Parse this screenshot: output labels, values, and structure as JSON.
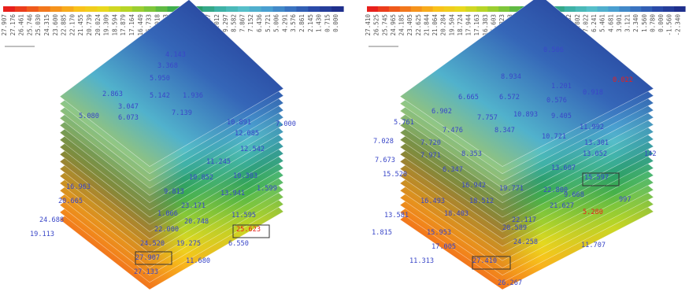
{
  "panels": [
    {
      "id": "left",
      "legend_values": [
        "27.907",
        "27.176",
        "26.461",
        "25.746",
        "25.030",
        "24.315",
        "23.600",
        "22.885",
        "22.170",
        "21.455",
        "20.739",
        "20.024",
        "19.309",
        "18.594",
        "17.879",
        "17.164",
        "16.449",
        "15.733",
        "15.018",
        "14.303",
        "13.587",
        "12.873",
        "12.158",
        "11.442",
        "10.727",
        "10.012",
        "9.297",
        "8.582",
        "7.867",
        "7.152",
        "6.436",
        "5.721",
        "5.006",
        "4.291",
        "3.576",
        "2.861",
        "2.145",
        "1.430",
        "0.715",
        "0.000"
      ],
      "max_box_label": "27.907",
      "labels": [
        {
          "t": "4.143",
          "c": "blue"
        },
        {
          "t": "3.368",
          "c": "blue"
        },
        {
          "t": "5.950",
          "c": "blue"
        },
        {
          "t": "2.863",
          "c": "blue"
        },
        {
          "t": "5.142",
          "c": "blue"
        },
        {
          "t": "1.936",
          "c": "blue"
        },
        {
          "t": "3.047",
          "c": "blue"
        },
        {
          "t": "7.139",
          "c": "blue"
        },
        {
          "t": "5.080",
          "c": "blue"
        },
        {
          "t": "6.073",
          "c": "blue"
        },
        {
          "t": "10.891",
          "c": "blue"
        },
        {
          "t": "7.000",
          "c": "blue"
        },
        {
          "t": "12.085",
          "c": "blue"
        },
        {
          "t": "12.542",
          "c": "blue"
        },
        {
          "t": "11.245",
          "c": "blue"
        },
        {
          "t": "10.852",
          "c": "blue"
        },
        {
          "t": "10.303",
          "c": "blue"
        },
        {
          "t": "9.813",
          "c": "blue"
        },
        {
          "t": "13.941",
          "c": "blue"
        },
        {
          "t": "1.599",
          "c": "blue"
        },
        {
          "t": "16.963",
          "c": "blue"
        },
        {
          "t": "20.665",
          "c": "blue"
        },
        {
          "t": "1.066",
          "c": "blue"
        },
        {
          "t": "23.171",
          "c": "blue"
        },
        {
          "t": "11.595",
          "c": "blue"
        },
        {
          "t": "20.748",
          "c": "blue"
        },
        {
          "t": "24.688",
          "c": "blue"
        },
        {
          "t": "22.000",
          "c": "blue"
        },
        {
          "t": "19.113",
          "c": "blue"
        },
        {
          "t": "24.520",
          "c": "blue"
        },
        {
          "t": "19.275",
          "c": "blue"
        },
        {
          "t": "6.550",
          "c": "blue"
        },
        {
          "t": "27.907",
          "c": "blue"
        },
        {
          "t": "11.680",
          "c": "blue"
        },
        {
          "t": "27.133",
          "c": "blue"
        },
        {
          "t": "25.623",
          "c": "red"
        }
      ]
    },
    {
      "id": "right",
      "legend_values": [
        "27.410",
        "26.525",
        "25.745",
        "24.965",
        "24.185",
        "23.405",
        "22.625",
        "21.844",
        "21.064",
        "20.284",
        "19.504",
        "18.724",
        "17.944",
        "17.163",
        "16.383",
        "15.603",
        "14.823",
        "14.043",
        "13.263",
        "12.483",
        "11.702",
        "10.922",
        "10.142",
        "9.362",
        "8.582",
        "7.802",
        "7.022",
        "6.241",
        "5.461",
        "4.681",
        "3.901",
        "3.121",
        "2.340",
        "1.560",
        "0.780",
        "0.000",
        "-1.560",
        "-2.340"
      ],
      "max_box_label": "27.410",
      "labels": [
        {
          "t": "0.506",
          "c": "blue"
        },
        {
          "t": "8.934",
          "c": "blue"
        },
        {
          "t": "1.201",
          "c": "blue"
        },
        {
          "t": "0.022",
          "c": "red"
        },
        {
          "t": "6.665",
          "c": "blue"
        },
        {
          "t": "6.572",
          "c": "blue"
        },
        {
          "t": "0.576",
          "c": "blue"
        },
        {
          "t": "0.918",
          "c": "blue"
        },
        {
          "t": "6.902",
          "c": "blue"
        },
        {
          "t": "10.893",
          "c": "blue"
        },
        {
          "t": "7.757",
          "c": "blue"
        },
        {
          "t": "9.405",
          "c": "blue"
        },
        {
          "t": "5.761",
          "c": "blue"
        },
        {
          "t": "7.476",
          "c": "blue"
        },
        {
          "t": "8.347",
          "c": "blue"
        },
        {
          "t": "11.992",
          "c": "blue"
        },
        {
          "t": "7.028",
          "c": "blue"
        },
        {
          "t": "7.720",
          "c": "blue"
        },
        {
          "t": "10.721",
          "c": "blue"
        },
        {
          "t": "13.301",
          "c": "blue"
        },
        {
          "t": "7.971",
          "c": "blue"
        },
        {
          "t": "8.353",
          "c": "blue"
        },
        {
          "t": "13.052",
          "c": "blue"
        },
        {
          "t": "142",
          "c": "blue"
        },
        {
          "t": "7.673",
          "c": "blue"
        },
        {
          "t": "6.347",
          "c": "blue"
        },
        {
          "t": "13.607",
          "c": "blue"
        },
        {
          "t": "15.520",
          "c": "blue"
        },
        {
          "t": "16.942",
          "c": "blue"
        },
        {
          "t": "19.771",
          "c": "blue"
        },
        {
          "t": "22.800",
          "c": "blue"
        },
        {
          "t": "15.597",
          "c": "blue"
        },
        {
          "t": "9.668",
          "c": "blue"
        },
        {
          "t": "997",
          "c": "blue"
        },
        {
          "t": "16.493",
          "c": "blue"
        },
        {
          "t": "18.512",
          "c": "blue"
        },
        {
          "t": "21.627",
          "c": "blue"
        },
        {
          "t": "13.581",
          "c": "blue"
        },
        {
          "t": "18.403",
          "c": "blue"
        },
        {
          "t": "22.117",
          "c": "blue"
        },
        {
          "t": "20.589",
          "c": "blue"
        },
        {
          "t": "1.815",
          "c": "blue"
        },
        {
          "t": "15.953",
          "c": "blue"
        },
        {
          "t": "24.258",
          "c": "blue"
        },
        {
          "t": "17.005",
          "c": "blue"
        },
        {
          "t": "11.313",
          "c": "blue"
        },
        {
          "t": "27.410",
          "c": "blue"
        },
        {
          "t": "26.267",
          "c": "blue"
        },
        {
          "t": "11.707",
          "c": "blue"
        },
        {
          "t": "5.280",
          "c": "red"
        }
      ]
    }
  ],
  "colors": {
    "scale": [
      "#e8201c",
      "#ef5a1c",
      "#f5931d",
      "#f9c21b",
      "#e9d81e",
      "#b7d527",
      "#7ec63a",
      "#3fae4c",
      "#2a9d6a",
      "#3fb2a6",
      "#56bfc9",
      "#4a9fd0",
      "#3a73c0",
      "#2a4aa8",
      "#1f2f8c"
    ],
    "label_blue": "#3a47c8",
    "label_red": "#e8201c",
    "box": "#333333",
    "legend_text": "#555555"
  }
}
